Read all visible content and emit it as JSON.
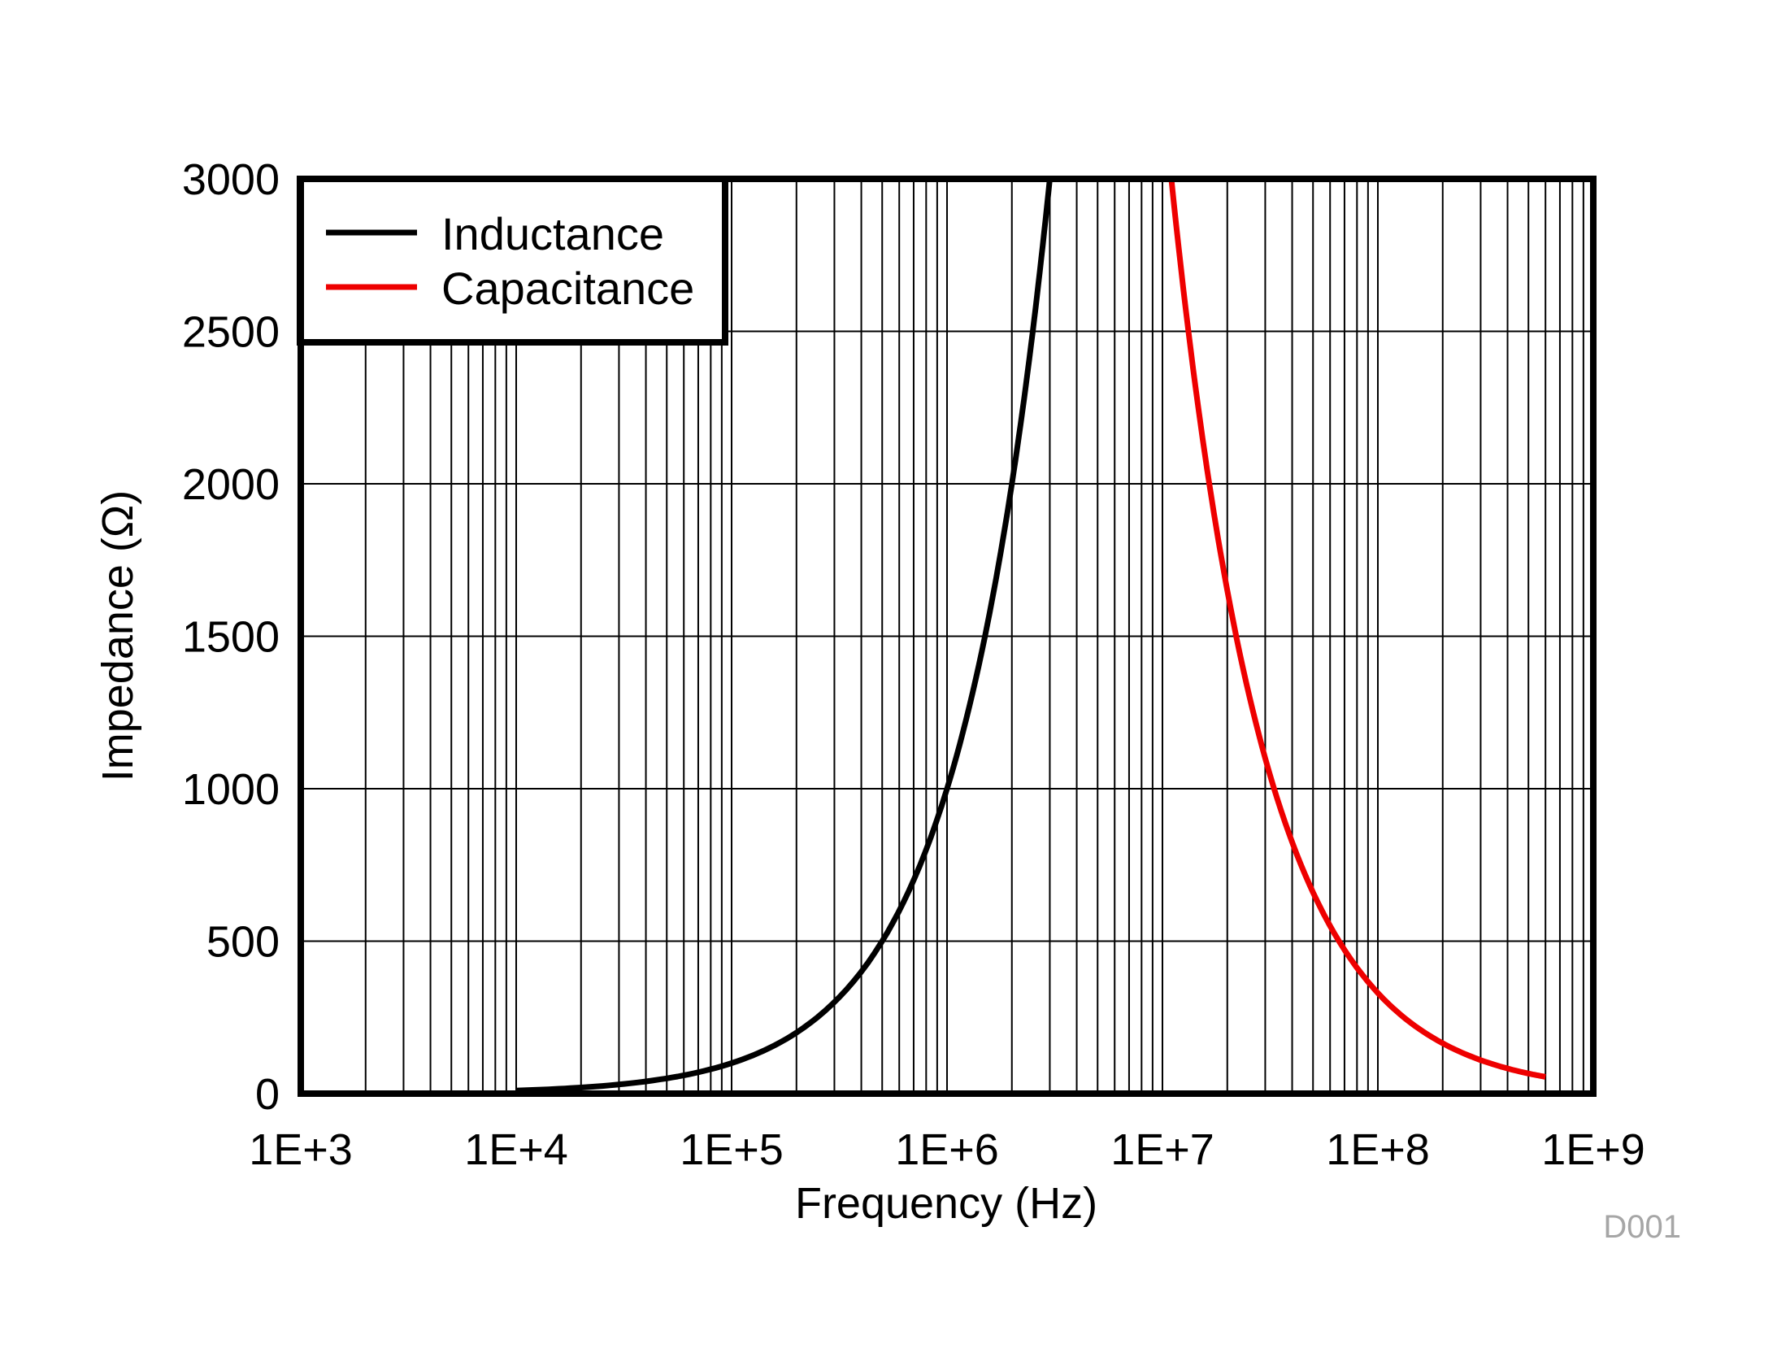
{
  "chart_data": {
    "type": "line",
    "xlabel": "Frequency (Hz)",
    "ylabel": "Impedance (Ω)",
    "x_scale": "log",
    "xlim": [
      1000,
      1000000000
    ],
    "ylim": [
      0,
      3000
    ],
    "x_tick_labels": [
      "1E+3",
      "1E+4",
      "1E+5",
      "1E+6",
      "1E+7",
      "1E+8",
      "1E+9"
    ],
    "y_tick_labels": [
      "0",
      "500",
      "1000",
      "1500",
      "2000",
      "2500",
      "3000"
    ],
    "y_ticks": [
      0,
      500,
      1000,
      1500,
      2000,
      2500,
      3000
    ],
    "grid": true,
    "legend_position": "top-left",
    "series": [
      {
        "name": "Inductance",
        "color": "#000000",
        "x": [
          10000,
          20000,
          50000,
          100000,
          200000,
          500000,
          1000000,
          1500000,
          2000000,
          2500000,
          3000000
        ],
        "y": [
          10,
          20,
          50,
          100,
          200,
          500,
          1000,
          1500,
          2000,
          2500,
          3000
        ]
      },
      {
        "name": "Capacitance",
        "color": "#ee0000",
        "x": [
          11000000,
          15000000,
          20000000,
          30000000,
          50000000,
          100000000,
          200000000,
          300000000,
          500000000,
          600000000
        ],
        "y": [
          3000,
          2200,
          1650,
          1100,
          660,
          330,
          165,
          110,
          66,
          55
        ]
      }
    ],
    "figure_code": "D001"
  }
}
